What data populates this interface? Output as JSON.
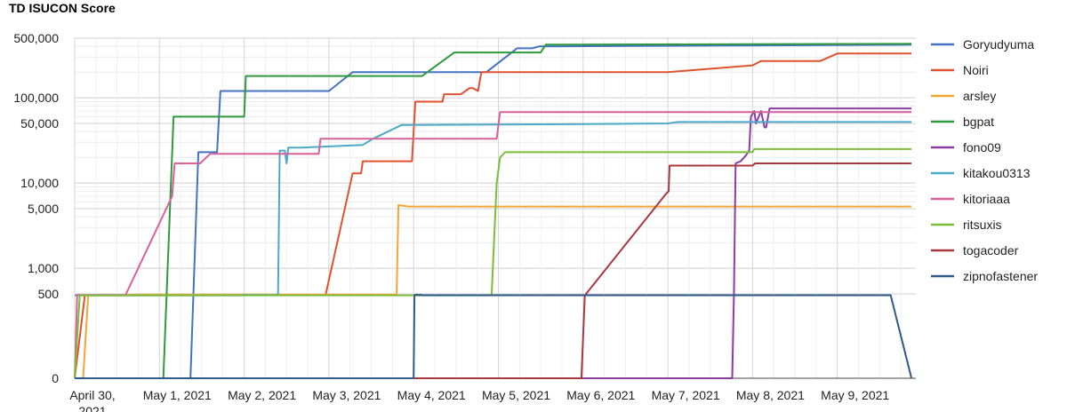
{
  "chart_data": {
    "type": "line",
    "title": "TD ISUCON Score",
    "xlabel": "",
    "ylabel": "",
    "y_scale": "symlog",
    "x_range": [
      "2021-04-30",
      "2021-05-09T21:00"
    ],
    "y_ticks": [
      {
        "value": 0,
        "label": "0"
      },
      {
        "value": 500,
        "label": "500"
      },
      {
        "value": 1000,
        "label": "1,000"
      },
      {
        "value": 5000,
        "label": "5,000"
      },
      {
        "value": 10000,
        "label": "10,000"
      },
      {
        "value": 50000,
        "label": "50,000"
      },
      {
        "value": 100000,
        "label": "100,000"
      },
      {
        "value": 500000,
        "label": "500,000"
      }
    ],
    "x_ticks": [
      {
        "date": "2021-04-30",
        "label": "April 30,",
        "label2": "2021"
      },
      {
        "date": "2021-05-01",
        "label": "May 1, 2021"
      },
      {
        "date": "2021-05-02",
        "label": "May 2, 2021"
      },
      {
        "date": "2021-05-03",
        "label": "May 3, 2021"
      },
      {
        "date": "2021-05-04",
        "label": "May 4, 2021"
      },
      {
        "date": "2021-05-05",
        "label": "May 5, 2021"
      },
      {
        "date": "2021-05-06",
        "label": "May 6, 2021"
      },
      {
        "date": "2021-05-07",
        "label": "May 7, 2021"
      },
      {
        "date": "2021-05-08",
        "label": "May 8, 2021"
      },
      {
        "date": "2021-05-09",
        "label": "May 9, 2021"
      }
    ],
    "grid": true,
    "legend_position": "right",
    "series": [
      {
        "name": "Goryudyuma",
        "color": "#4472c4",
        "points": [
          [
            "2021-04-30T00:00",
            0
          ],
          [
            "2021-05-01T08:48",
            0
          ],
          [
            "2021-05-01T11:02",
            23000
          ],
          [
            "2021-05-01T16:19",
            23000
          ],
          [
            "2021-05-01T17:17",
            120000
          ],
          [
            "2021-05-03T00:00",
            120000
          ],
          [
            "2021-05-03T06:43",
            200000
          ],
          [
            "2021-05-04T20:38",
            200000
          ],
          [
            "2021-05-05T05:17",
            380000
          ],
          [
            "2021-05-05T09:36",
            380000
          ],
          [
            "2021-05-05T11:31",
            400000
          ],
          [
            "2021-05-09T21:00",
            420000
          ]
        ]
      },
      {
        "name": "Noiri",
        "color": "#e0522f",
        "points": [
          [
            "2021-04-30T00:00",
            0
          ],
          [
            "2021-04-30T02:53",
            280
          ],
          [
            "2021-05-02T23:02",
            290
          ],
          [
            "2021-05-03T06:43",
            13000
          ],
          [
            "2021-05-03T09:07",
            13000
          ],
          [
            "2021-05-03T09:36",
            18000
          ],
          [
            "2021-05-03T23:31",
            18000
          ],
          [
            "2021-05-04T00:29",
            90000
          ],
          [
            "2021-05-04T08:10",
            90000
          ],
          [
            "2021-05-04T08:38",
            110000
          ],
          [
            "2021-05-04T13:26",
            110000
          ],
          [
            "2021-05-04T15:50",
            130000
          ],
          [
            "2021-05-04T16:48",
            130000
          ],
          [
            "2021-05-04T18:14",
            120000
          ],
          [
            "2021-05-04T19:12",
            200000
          ],
          [
            "2021-05-07T00:00",
            200000
          ],
          [
            "2021-05-08T00:00",
            240000
          ],
          [
            "2021-05-08T02:24",
            270000
          ],
          [
            "2021-05-08T19:12",
            270000
          ],
          [
            "2021-05-09T00:00",
            330000
          ],
          [
            "2021-05-09T21:00",
            330000
          ]
        ]
      },
      {
        "name": "arsley",
        "color": "#f4a535",
        "points": [
          [
            "2021-04-30T00:00",
            0
          ],
          [
            "2021-04-30T02:24",
            0
          ],
          [
            "2021-04-30T03:50",
            300
          ],
          [
            "2021-04-30T06:43",
            290
          ],
          [
            "2021-04-30T14:24",
            290
          ],
          [
            "2021-04-30T16:19",
            360
          ],
          [
            "2021-05-03T19:12",
            360
          ],
          [
            "2021-05-03T19:41",
            5500
          ],
          [
            "2021-05-03T21:07",
            5400
          ],
          [
            "2021-05-03T22:34",
            5300
          ],
          [
            "2021-05-09T21:00",
            5300
          ]
        ]
      },
      {
        "name": "bgpat",
        "color": "#2e9a3c",
        "points": [
          [
            "2021-04-30T00:00",
            0
          ],
          [
            "2021-05-01T01:07",
            0
          ],
          [
            "2021-05-01T04:00",
            60000
          ],
          [
            "2021-05-02T00:00",
            60000
          ],
          [
            "2021-05-02T00:29",
            180000
          ],
          [
            "2021-05-04T02:24",
            180000
          ],
          [
            "2021-05-04T11:31",
            340000
          ],
          [
            "2021-05-05T12:00",
            340000
          ],
          [
            "2021-05-05T13:26",
            420000
          ],
          [
            "2021-05-09T21:00",
            430000
          ]
        ]
      },
      {
        "name": "fono09",
        "color": "#8b3da0",
        "points": [
          [
            "2021-04-30T00:00",
            0
          ],
          [
            "2021-05-07T18:14",
            0
          ],
          [
            "2021-05-07T18:43",
            260
          ],
          [
            "2021-05-07T19:12",
            17000
          ],
          [
            "2021-05-07T20:38",
            18000
          ],
          [
            "2021-05-07T22:05",
            21000
          ],
          [
            "2021-05-07T23:02",
            24000
          ],
          [
            "2021-05-07T23:31",
            60000
          ],
          [
            "2021-05-08T00:29",
            70000
          ],
          [
            "2021-05-08T00:58",
            50000
          ],
          [
            "2021-05-08T02:24",
            70000
          ],
          [
            "2021-05-08T03:22",
            45000
          ],
          [
            "2021-05-08T03:50",
            45000
          ],
          [
            "2021-05-08T04:48",
            75000
          ],
          [
            "2021-05-09T21:00",
            75000
          ]
        ]
      },
      {
        "name": "kitakou0313",
        "color": "#4ca9c8",
        "points": [
          [
            "2021-04-30T00:00",
            280
          ],
          [
            "2021-05-01T23:31",
            280
          ],
          [
            "2021-05-02T00:00",
            320
          ],
          [
            "2021-05-02T08:38",
            310
          ],
          [
            "2021-05-02T09:36",
            340
          ],
          [
            "2021-05-02T10:05",
            24000
          ],
          [
            "2021-05-02T11:31",
            24000
          ],
          [
            "2021-05-02T12:00",
            17000
          ],
          [
            "2021-05-02T12:29",
            26000
          ],
          [
            "2021-05-02T14:24",
            26000
          ],
          [
            "2021-05-02T16:19",
            26000
          ],
          [
            "2021-05-03T09:36",
            28000
          ],
          [
            "2021-05-03T12:29",
            33000
          ],
          [
            "2021-05-03T20:38",
            48000
          ],
          [
            "2021-05-03T22:05",
            48000
          ],
          [
            "2021-05-06T00:00",
            49000
          ],
          [
            "2021-05-07T00:00",
            50000
          ],
          [
            "2021-05-07T02:53",
            52000
          ],
          [
            "2021-05-09T21:00",
            52000
          ]
        ]
      },
      {
        "name": "kitoriaaa",
        "color": "#d9619a",
        "points": [
          [
            "2021-04-30T00:00",
            0
          ],
          [
            "2021-04-30T00:43",
            310
          ],
          [
            "2021-04-30T14:24",
            310
          ],
          [
            "2021-05-01T03:36",
            7000
          ],
          [
            "2021-05-01T04:19",
            17000
          ],
          [
            "2021-05-01T11:31",
            17000
          ],
          [
            "2021-05-01T14:24",
            22000
          ],
          [
            "2021-05-02T21:07",
            22000
          ],
          [
            "2021-05-02T21:36",
            33000
          ],
          [
            "2021-05-04T23:31",
            33000
          ],
          [
            "2021-05-05T00:29",
            68000
          ],
          [
            "2021-05-09T21:00",
            68000
          ]
        ]
      },
      {
        "name": "ritsuxis",
        "color": "#7cbd3b",
        "points": [
          [
            "2021-04-30T00:00",
            0
          ],
          [
            "2021-04-30T01:26",
            280
          ],
          [
            "2021-05-04T21:07",
            280
          ],
          [
            "2021-05-04T22:05",
            300
          ],
          [
            "2021-05-04T23:31",
            10000
          ],
          [
            "2021-05-05T00:29",
            20000
          ],
          [
            "2021-05-05T01:55",
            23000
          ],
          [
            "2021-05-08T00:00",
            23000
          ],
          [
            "2021-05-08T00:29",
            25000
          ],
          [
            "2021-05-09T21:00",
            25000
          ]
        ]
      },
      {
        "name": "togacoder",
        "color": "#a8383e",
        "points": [
          [
            "2021-04-30T00:00",
            0
          ],
          [
            "2021-05-05T23:31",
            0
          ],
          [
            "2021-05-06T00:29",
            270
          ],
          [
            "2021-05-06T23:31",
            7500
          ],
          [
            "2021-05-07T00:14",
            8000
          ],
          [
            "2021-05-07T00:29",
            16000
          ],
          [
            "2021-05-08T00:00",
            16000
          ],
          [
            "2021-05-08T00:43",
            17000
          ],
          [
            "2021-05-09T21:00",
            17000
          ]
        ]
      },
      {
        "name": "zipnofastener",
        "color": "#2f5a8a",
        "points": [
          [
            "2021-04-30T00:00",
            0
          ],
          [
            "2021-05-04T00:00",
            0
          ],
          [
            "2021-05-04T00:14",
            300
          ],
          [
            "2021-05-04T00:58",
            360
          ],
          [
            "2021-05-04T01:26",
            290
          ],
          [
            "2021-05-04T01:55",
            330
          ],
          [
            "2021-05-04T02:24",
            290
          ],
          [
            "2021-05-04T22:05",
            290
          ],
          [
            "2021-05-09T15:07",
            290
          ],
          [
            "2021-05-09T21:00",
            0
          ]
        ]
      }
    ]
  }
}
